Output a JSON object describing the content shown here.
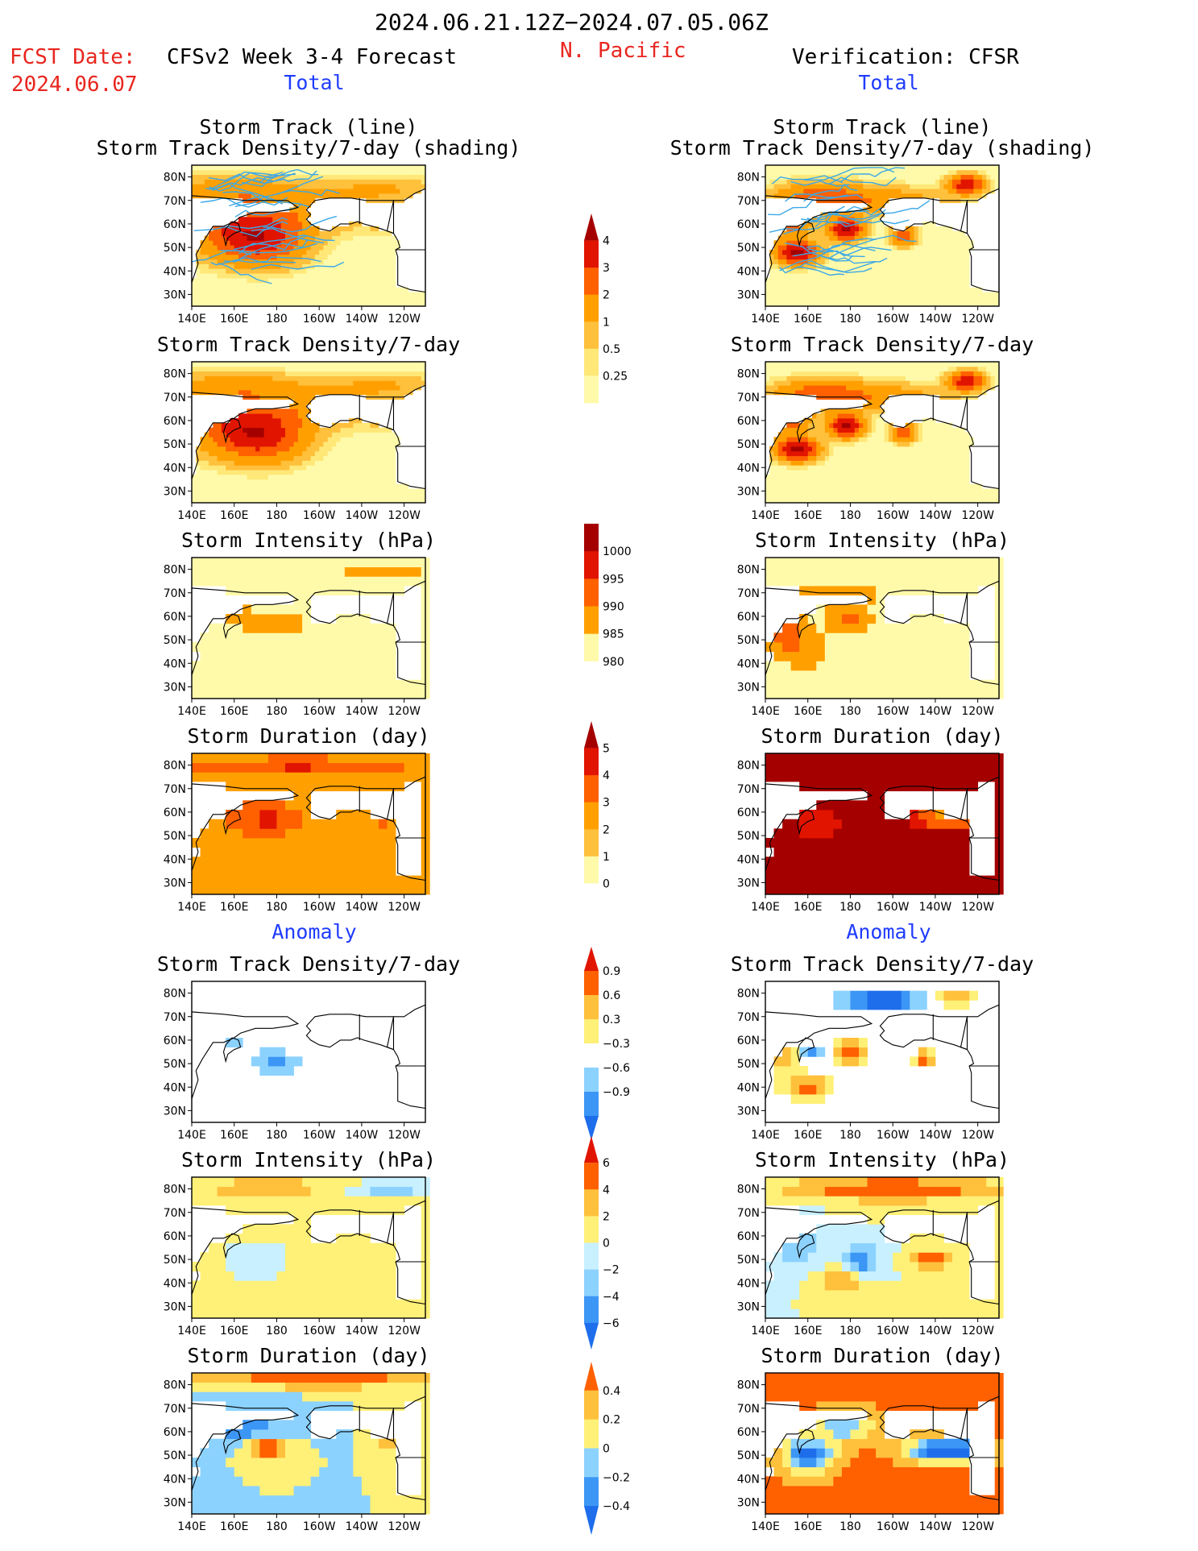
{
  "header": {
    "date_range": "2024.06.21.12Z−2024.07.05.06Z",
    "region": "N. Pacific",
    "fcst_label": "FCST Date:",
    "fcst_date": "2024.06.07",
    "left_title": "CFSv2 Week 3-4 Forecast",
    "right_title": "Verification: CFSR",
    "total_label": "Total",
    "anomaly_label": "Anomaly"
  },
  "colors": {
    "title_red": "#e8261f",
    "label_blue": "#1f3cff",
    "track_line": "#3aa8e8"
  },
  "axes": {
    "lat_ticks": [
      "30N",
      "40N",
      "50N",
      "60N",
      "70N",
      "80N"
    ],
    "lon_ticks": [
      "140E",
      "160E",
      "180",
      "160W",
      "140W",
      "120W"
    ]
  },
  "chart_data": [
    {
      "id": "f-track",
      "column": "forecast",
      "title": "Storm Track (line)\nStorm Track Density/7-day (shading)",
      "type": "heatmap",
      "scale": "total_density",
      "overlay": "track_lines",
      "blobs": [
        [
          160,
          57,
          24,
          12,
          2.2
        ],
        [
          175,
          52,
          20,
          10,
          2.4
        ],
        [
          190,
          65,
          40,
          9,
          1.3
        ],
        [
          160,
          75,
          30,
          6,
          1.4
        ],
        [
          230,
          75,
          30,
          5,
          1.0
        ],
        [
          232,
          62,
          8,
          5,
          0.7
        ]
      ]
    },
    {
      "id": "v-track",
      "column": "verification",
      "title": "Storm Track (line)\nStorm Track Density/7-day (shading)",
      "type": "heatmap",
      "scale": "total_density",
      "overlay": "track_lines",
      "blobs": [
        [
          150,
          62,
          10,
          6,
          4.5
        ],
        [
          155,
          48,
          10,
          5,
          4.5
        ],
        [
          178,
          58,
          8,
          5,
          4.5
        ],
        [
          205,
          55,
          6,
          4,
          2.8
        ],
        [
          195,
          70,
          30,
          6,
          1.6
        ],
        [
          235,
          77,
          8,
          4,
          4
        ],
        [
          165,
          72,
          20,
          6,
          2.2
        ]
      ]
    },
    {
      "id": "f-density",
      "column": "forecast",
      "title": "Storm Track Density/7-day",
      "type": "heatmap",
      "scale": "total_density",
      "blobs": [
        [
          160,
          57,
          24,
          12,
          2.2
        ],
        [
          175,
          52,
          20,
          10,
          2.4
        ],
        [
          190,
          65,
          40,
          9,
          1.3
        ],
        [
          160,
          75,
          30,
          6,
          1.4
        ],
        [
          230,
          75,
          30,
          5,
          1.0
        ],
        [
          232,
          62,
          8,
          5,
          0.7
        ]
      ]
    },
    {
      "id": "v-density",
      "column": "verification",
      "title": "Storm Track Density/7-day",
      "type": "heatmap",
      "scale": "total_density",
      "blobs": [
        [
          150,
          62,
          10,
          6,
          4.5
        ],
        [
          155,
          48,
          10,
          5,
          4.5
        ],
        [
          178,
          58,
          8,
          5,
          4.5
        ],
        [
          205,
          55,
          6,
          4,
          2.8
        ],
        [
          195,
          70,
          30,
          6,
          1.6
        ],
        [
          235,
          77,
          8,
          4,
          4
        ],
        [
          165,
          72,
          20,
          6,
          2.2
        ]
      ]
    },
    {
      "id": "f-intensity",
      "column": "forecast",
      "title": "Storm Intensity (hPa)",
      "type": "heatmap",
      "scale": "total_intensity",
      "base": 998,
      "blobs": [
        [
          180,
          57,
          15,
          6,
          -7
        ],
        [
          160,
          62,
          8,
          5,
          -5
        ],
        [
          230,
          79,
          25,
          3,
          -5
        ]
      ]
    },
    {
      "id": "v-intensity",
      "column": "verification",
      "title": "Storm Intensity (hPa)",
      "type": "heatmap",
      "scale": "total_intensity",
      "base": 998,
      "blobs": [
        [
          150,
          55,
          10,
          12,
          -10
        ],
        [
          180,
          58,
          10,
          6,
          -9
        ],
        [
          175,
          70,
          20,
          6,
          -6
        ],
        [
          160,
          45,
          10,
          8,
          -5
        ]
      ]
    },
    {
      "id": "f-duration",
      "column": "forecast",
      "title": "Storm Duration (day)",
      "type": "heatmap",
      "scale": "total_duration",
      "base": 2.4,
      "blobs": [
        [
          175,
          57,
          18,
          7,
          1.8
        ],
        [
          190,
          80,
          50,
          3,
          1.8
        ],
        [
          230,
          60,
          8,
          6,
          1.5
        ]
      ]
    },
    {
      "id": "v-duration",
      "column": "verification",
      "title": "Storm Duration (day)",
      "type": "heatmap",
      "scale": "total_duration",
      "base": 6,
      "blobs": [
        [
          225,
          58,
          18,
          6,
          -3.5
        ],
        [
          165,
          55,
          12,
          8,
          -2
        ]
      ]
    },
    {
      "id": "f-density-anom",
      "column": "forecast",
      "title": "Storm Track Density/7-day",
      "type": "heatmap",
      "scale": "anom_density",
      "blobs": [
        [
          180,
          50,
          12,
          6,
          -0.7
        ],
        [
          160,
          58,
          12,
          5,
          -0.35
        ]
      ]
    },
    {
      "id": "v-density-anom",
      "column": "verification",
      "title": "Storm Track Density/7-day",
      "type": "heatmap",
      "scale": "anom_density",
      "blobs": [
        [
          150,
          60,
          10,
          12,
          1.3
        ],
        [
          180,
          55,
          8,
          6,
          1.3
        ],
        [
          195,
          77,
          20,
          5,
          -1.2
        ],
        [
          160,
          55,
          8,
          5,
          -1.0
        ],
        [
          215,
          52,
          5,
          4,
          1.1
        ],
        [
          230,
          78,
          10,
          4,
          1.0
        ],
        [
          160,
          40,
          12,
          6,
          1.0
        ]
      ]
    },
    {
      "id": "f-intensity-anom",
      "column": "forecast",
      "title": "Storm Intensity (hPa)",
      "type": "heatmap",
      "scale": "anom_intensity",
      "base": 1.5,
      "blobs": [
        [
          170,
          50,
          18,
          10,
          -3.2
        ],
        [
          235,
          80,
          20,
          4,
          -5
        ],
        [
          175,
          80,
          20,
          3,
          2.5
        ]
      ]
    },
    {
      "id": "v-intensity-anom",
      "column": "verification",
      "title": "Storm Intensity (hPa)",
      "type": "heatmap",
      "scale": "anom_intensity",
      "blobs": [
        [
          200,
          80,
          50,
          5,
          6
        ],
        [
          155,
          57,
          12,
          10,
          -4
        ],
        [
          185,
          50,
          8,
          6,
          -6
        ],
        [
          218,
          50,
          8,
          4,
          6
        ],
        [
          175,
          40,
          10,
          6,
          4
        ]
      ]
    },
    {
      "id": "f-duration-anom",
      "column": "forecast",
      "title": "Storm Duration (day)",
      "type": "heatmap",
      "scale": "anom_duration",
      "blobs": [
        [
          200,
          82,
          60,
          3,
          0.6
        ],
        [
          160,
          63,
          20,
          8,
          -0.4
        ],
        [
          175,
          53,
          10,
          5,
          0.6
        ],
        [
          232,
          60,
          6,
          6,
          0.5
        ]
      ]
    },
    {
      "id": "v-duration-anom",
      "column": "verification",
      "title": "Storm Duration (day)",
      "type": "heatmap",
      "scale": "anom_duration",
      "base": 0.45,
      "blobs": [
        [
          225,
          52,
          18,
          5,
          -1.2
        ],
        [
          160,
          50,
          12,
          8,
          -0.9
        ],
        [
          178,
          63,
          14,
          7,
          -0.6
        ]
      ]
    }
  ],
  "scales": {
    "total_density": {
      "levels": [
        0.25,
        0.5,
        1,
        2,
        3,
        4
      ],
      "colors": [
        "#fffaaa",
        "#ffe878",
        "#ffc03c",
        "#ffa000",
        "#ff6000",
        "#e11400",
        "#a50000"
      ],
      "labels": [
        "0.25",
        "0.5",
        "1",
        "2",
        "3",
        "4"
      ]
    },
    "total_intensity": {
      "levels": [
        980,
        985,
        990,
        995,
        1000
      ],
      "colors": [
        "#a50000",
        "#e11400",
        "#ff6000",
        "#ffa000",
        "#fffaaa",
        "#ffffff"
      ],
      "labels": [
        "1000",
        "995",
        "990",
        "985",
        "980"
      ]
    },
    "total_duration": {
      "levels": [
        0,
        1,
        2,
        3,
        4,
        5
      ],
      "colors": [
        "#ffffff",
        "#fffaaa",
        "#ffc03c",
        "#ffa000",
        "#ff6000",
        "#e11400",
        "#a50000"
      ],
      "labels": [
        "0",
        "1",
        "2",
        "3",
        "4",
        "5"
      ]
    },
    "anom_density": {
      "levels": [
        -0.9,
        -0.6,
        -0.3,
        0.3,
        0.6,
        0.9
      ],
      "colors": [
        "#1e6eeb",
        "#3c96f5",
        "#8cd2ff",
        "#ffffff",
        "#fff078",
        "#ffc03c",
        "#ff6000",
        "#e11400"
      ],
      "labels": [
        "-0.9",
        "-0.6",
        "-0.3",
        "0.3",
        "0.6",
        "0.9"
      ]
    },
    "anom_intensity": {
      "levels": [
        -6,
        -4,
        -2,
        0,
        2,
        4,
        6
      ],
      "colors": [
        "#1e6eeb",
        "#3c96f5",
        "#8cd2ff",
        "#c8f0ff",
        "#fff078",
        "#ffc03c",
        "#ff6000",
        "#e11400"
      ],
      "labels": [
        "-6",
        "-4",
        "-2",
        "0",
        "2",
        "4",
        "6"
      ]
    },
    "anom_duration": {
      "levels": [
        -0.4,
        -0.2,
        0,
        0.2,
        0.4
      ],
      "colors": [
        "#1e6eeb",
        "#3c96f5",
        "#8cd2ff",
        "#fff078",
        "#ffc03c",
        "#ff6000"
      ],
      "labels": [
        "-0.4",
        "-0.2",
        "0",
        "0.2",
        "0.4"
      ]
    }
  },
  "colorbars": [
    {
      "scale": "total_density",
      "labels": [
        "4",
        "3",
        "2",
        "1",
        "0.5",
        "0.25"
      ],
      "order": "desc",
      "arrows": "top"
    },
    {
      "scale": "total_intensity",
      "labels": [
        "1000",
        "995",
        "990",
        "985",
        "980"
      ],
      "order": "asc",
      "arrows": "bottom"
    },
    {
      "scale": "total_duration",
      "labels": [
        "5",
        "4",
        "3",
        "2",
        "1",
        "0"
      ],
      "order": "desc",
      "arrows": "top"
    },
    {
      "scale": "anom_density",
      "labels": [
        "0.9",
        "0.6",
        "0.3",
        "−0.3",
        "−0.6",
        "−0.9"
      ],
      "order": "desc",
      "arrows": "both"
    },
    {
      "scale": "anom_intensity",
      "labels": [
        "6",
        "4",
        "2",
        "0",
        "−2",
        "−4",
        "−6"
      ],
      "order": "desc",
      "arrows": "both"
    },
    {
      "scale": "anom_duration",
      "labels": [
        "0.4",
        "0.2",
        "0",
        "−0.2",
        "−0.4"
      ],
      "order": "desc",
      "arrows": "both"
    }
  ]
}
